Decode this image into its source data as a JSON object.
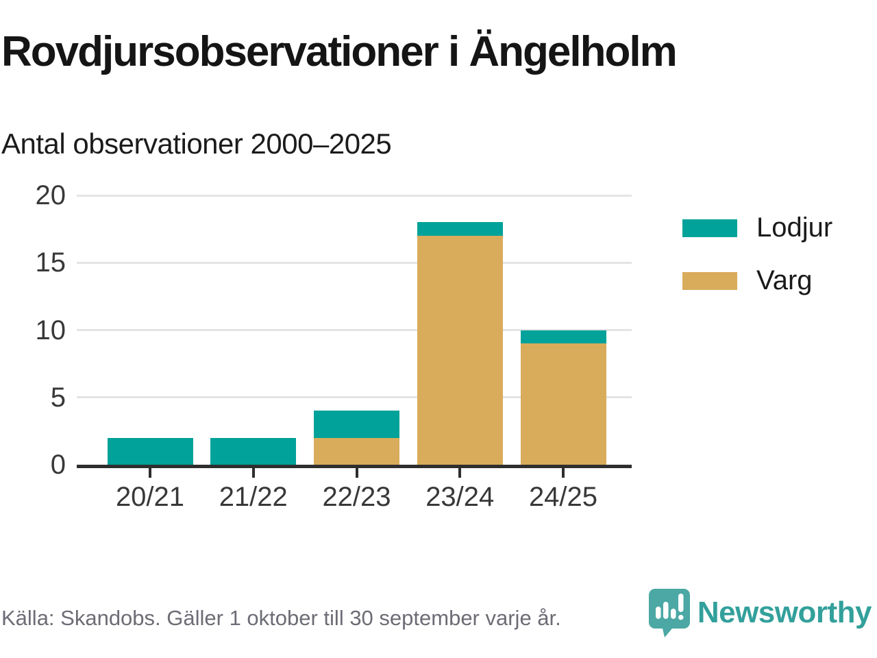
{
  "header": {
    "title": "Rovdjursobservationer i Ängelholm",
    "subtitle": "Antal observationer 2000–2025"
  },
  "chart_data": {
    "type": "bar",
    "stacked": true,
    "title": "Rovdjursobservationer i Ängelholm",
    "subtitle": "Antal observationer 2000–2025",
    "categories": [
      "20/21",
      "21/22",
      "22/23",
      "23/24",
      "24/25"
    ],
    "series": [
      {
        "name": "Lodjur",
        "color": "#00a29a",
        "values": [
          2,
          2,
          2,
          1,
          1
        ]
      },
      {
        "name": "Varg",
        "color": "#d9ac5b",
        "values": [
          0,
          0,
          2,
          17,
          9
        ]
      }
    ],
    "stack_order_bottom_to_top": [
      "Varg",
      "Lodjur"
    ],
    "totals": [
      2,
      2,
      4,
      18,
      10
    ],
    "xlabel": "",
    "ylabel": "",
    "ylim": [
      0,
      20
    ],
    "yticks": [
      0,
      5,
      10,
      15,
      20
    ],
    "grid": true,
    "legend_position": "right"
  },
  "legend": {
    "items": [
      {
        "label": "Lodjur",
        "color": "#00a29a"
      },
      {
        "label": "Varg",
        "color": "#d9ac5b"
      }
    ]
  },
  "footer": {
    "source": "Källa: Skandobs. Gäller 1 oktober till 30 september varje år.",
    "brand": "Newsworthy"
  },
  "colors": {
    "lodjur": "#00a29a",
    "varg": "#d9ac5b",
    "axis": "#2e2e2e",
    "gridline": "#e4e4e4",
    "text": "#151515",
    "muted_text": "#6c6c75",
    "brand_teal": "#33a09b",
    "brand_icon_teal": "#4ba8a4"
  }
}
